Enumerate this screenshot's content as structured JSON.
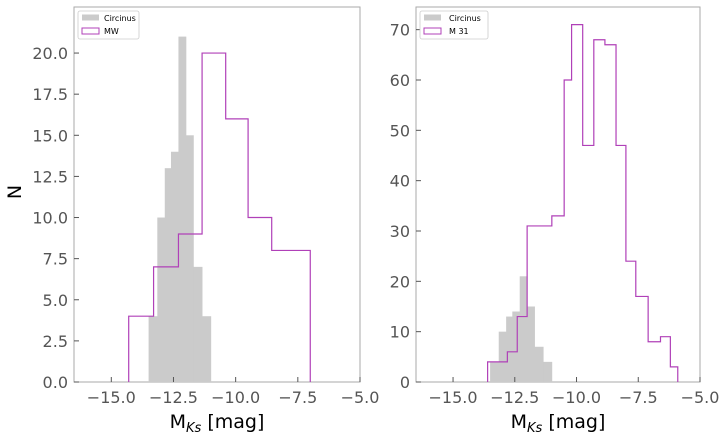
{
  "chart_data": [
    {
      "type": "bar",
      "subtype": "histogram",
      "xlabel_main": "M",
      "xlabel_sub": "Ks",
      "xlabel_unit": " [mag]",
      "ylabel": "N",
      "xlim": [
        -16.5,
        -5.0
      ],
      "ylim": [
        0,
        22.8
      ],
      "xticks": [
        -15.0,
        -12.5,
        -10.0,
        -7.5,
        -5.0
      ],
      "xtick_labels": [
        "−15.0",
        "−12.5",
        "−10.0",
        "−7.5",
        "−5.0"
      ],
      "yticks": [
        0,
        2.5,
        5,
        7.5,
        10,
        12.5,
        15,
        17.5,
        20
      ],
      "ytick_labels": [
        "0.0",
        "2.5",
        "5.0",
        "7.5",
        "10.0",
        "12.5",
        "15.0",
        "17.5",
        "20.0"
      ],
      "legend_position": "top-left",
      "series": [
        {
          "name": "Circinus",
          "style": "filled",
          "color": "#cbcbcb",
          "bin_edges": [
            -13.5,
            -13.15,
            -12.85,
            -12.6,
            -12.3,
            -12.0,
            -11.7,
            -11.35,
            -11.0
          ],
          "counts": [
            4,
            10,
            13,
            14,
            21,
            15,
            7,
            4
          ]
        },
        {
          "name": "MW",
          "style": "step",
          "color": "#b040b8",
          "bin_edges": [
            -14.3,
            -13.3,
            -12.3,
            -11.35,
            -10.4,
            -9.5,
            -8.55,
            -7.0
          ],
          "counts": [
            4,
            7,
            9,
            20,
            16,
            10,
            8
          ]
        }
      ]
    },
    {
      "type": "bar",
      "subtype": "histogram",
      "xlabel_main": "M",
      "xlabel_sub": "Ks",
      "xlabel_unit": " [mag]",
      "ylabel": "",
      "xlim": [
        -16.5,
        -5.0
      ],
      "ylim": [
        0,
        74.5
      ],
      "xticks": [
        -15.0,
        -12.5,
        -10.0,
        -7.5,
        -5.0
      ],
      "xtick_labels": [
        "−15.0",
        "−12.5",
        "−10.0",
        "−7.5",
        "−5.0"
      ],
      "yticks": [
        0,
        10,
        20,
        30,
        40,
        50,
        60,
        70
      ],
      "ytick_labels": [
        "0",
        "10",
        "20",
        "30",
        "40",
        "50",
        "60",
        "70"
      ],
      "legend_position": "top-left",
      "series": [
        {
          "name": "Circinus",
          "style": "filled",
          "color": "#cbcbcb",
          "bin_edges": [
            -13.5,
            -13.15,
            -12.85,
            -12.6,
            -12.3,
            -12.0,
            -11.7,
            -11.35,
            -11.0
          ],
          "counts": [
            4,
            10,
            13,
            14,
            21,
            15,
            7,
            4
          ]
        },
        {
          "name": "M 31",
          "style": "step",
          "color": "#b040b8",
          "bin_edges": [
            -13.6,
            -12.8,
            -12.4,
            -12.0,
            -11.5,
            -11.0,
            -10.5,
            -10.2,
            -9.75,
            -9.3,
            -8.85,
            -8.4,
            -8.0,
            -7.6,
            -7.1,
            -6.6,
            -6.2,
            -5.9
          ],
          "counts": [
            4,
            6,
            13,
            31,
            31,
            33,
            60,
            71,
            47,
            68,
            67,
            47,
            24,
            17,
            8,
            9,
            3
          ]
        }
      ]
    }
  ]
}
